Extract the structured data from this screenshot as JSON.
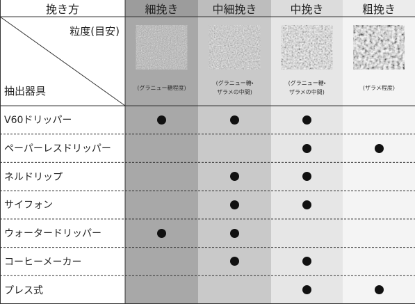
{
  "header": {
    "corner": "挽き方",
    "columns": [
      "細挽き",
      "中細挽き",
      "中挽き",
      "粗挽き"
    ]
  },
  "subheader": {
    "axis_top": "粒度(目安)",
    "axis_bottom": "抽出器具",
    "captions": [
      "(グラニュー糖程度)",
      "(グラニュー糖・\nザラメの中間)",
      "(グラニュー糖・\nザラメの中間)",
      "(ザラメ程度)"
    ]
  },
  "rows": [
    {
      "label": "V60ドリッパー",
      "marks": [
        true,
        true,
        true,
        false
      ]
    },
    {
      "label": "ペーパーレスドリッパー",
      "marks": [
        false,
        false,
        true,
        true
      ]
    },
    {
      "label": "ネルドリップ",
      "marks": [
        false,
        true,
        true,
        false
      ]
    },
    {
      "label": "サイフォン",
      "marks": [
        false,
        true,
        true,
        false
      ]
    },
    {
      "label": "ウォータードリッパー",
      "marks": [
        true,
        true,
        false,
        false
      ]
    },
    {
      "label": "コーヒーメーカー",
      "marks": [
        false,
        true,
        true,
        false
      ]
    },
    {
      "label": "プレス式",
      "marks": [
        false,
        false,
        true,
        true
      ]
    }
  ]
}
